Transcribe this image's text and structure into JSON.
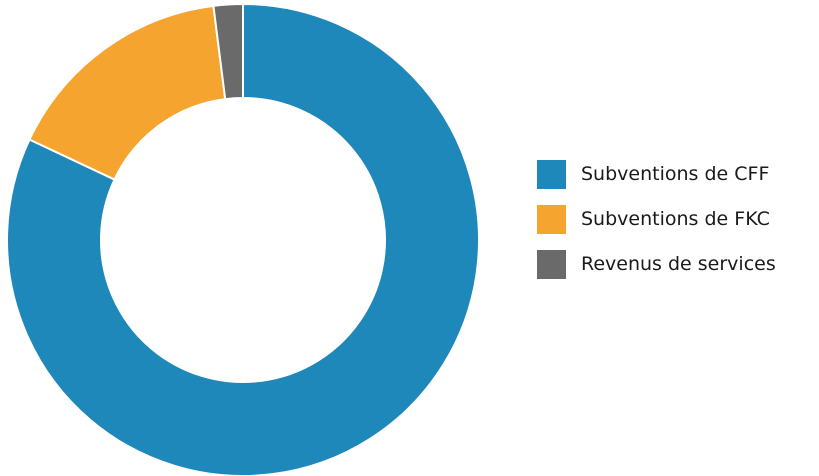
{
  "chart_data": {
    "type": "pie",
    "variant": "donut",
    "title": "",
    "categories": [
      "Subventions de CFF",
      "Subventions de FKC",
      "Revenus de services"
    ],
    "values": [
      82,
      16,
      2
    ],
    "colors": [
      "#1f88ba",
      "#f5a42f",
      "#6a6a6a"
    ],
    "legend_position": "right",
    "grid": false
  },
  "legend": {
    "items": [
      {
        "label": "Subventions de CFF",
        "color": "#1f88ba"
      },
      {
        "label": "Subventions de FKC",
        "color": "#f5a42f"
      },
      {
        "label": "Revenus de services",
        "color": "#6a6a6a"
      }
    ]
  }
}
